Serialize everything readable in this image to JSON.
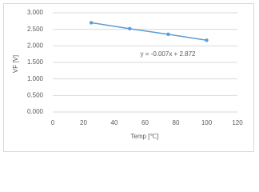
{
  "chart_data": {
    "type": "scatter",
    "line": true,
    "x": [
      25,
      50,
      75,
      100
    ],
    "values": [
      2.7,
      2.52,
      2.35,
      2.17
    ],
    "color": "#5b9bd5",
    "xlim": [
      0,
      120
    ],
    "xticks": [
      0,
      20,
      40,
      60,
      80,
      100,
      120
    ],
    "ylim": [
      0,
      3
    ],
    "yticks": [
      {
        "value": 0,
        "label": "0.000"
      },
      {
        "value": 0.5,
        "label": "0.500"
      },
      {
        "value": 1,
        "label": "1.000"
      },
      {
        "value": 1.5,
        "label": "1.500"
      },
      {
        "value": 2,
        "label": "2.000"
      },
      {
        "value": 2.5,
        "label": "2.500"
      },
      {
        "value": 3,
        "label": "3.000"
      }
    ],
    "grid": true,
    "xlabel": "Temp [℃]",
    "ylabel": "VF [V]",
    "annotation": "y = -0.007x + 2.872"
  }
}
